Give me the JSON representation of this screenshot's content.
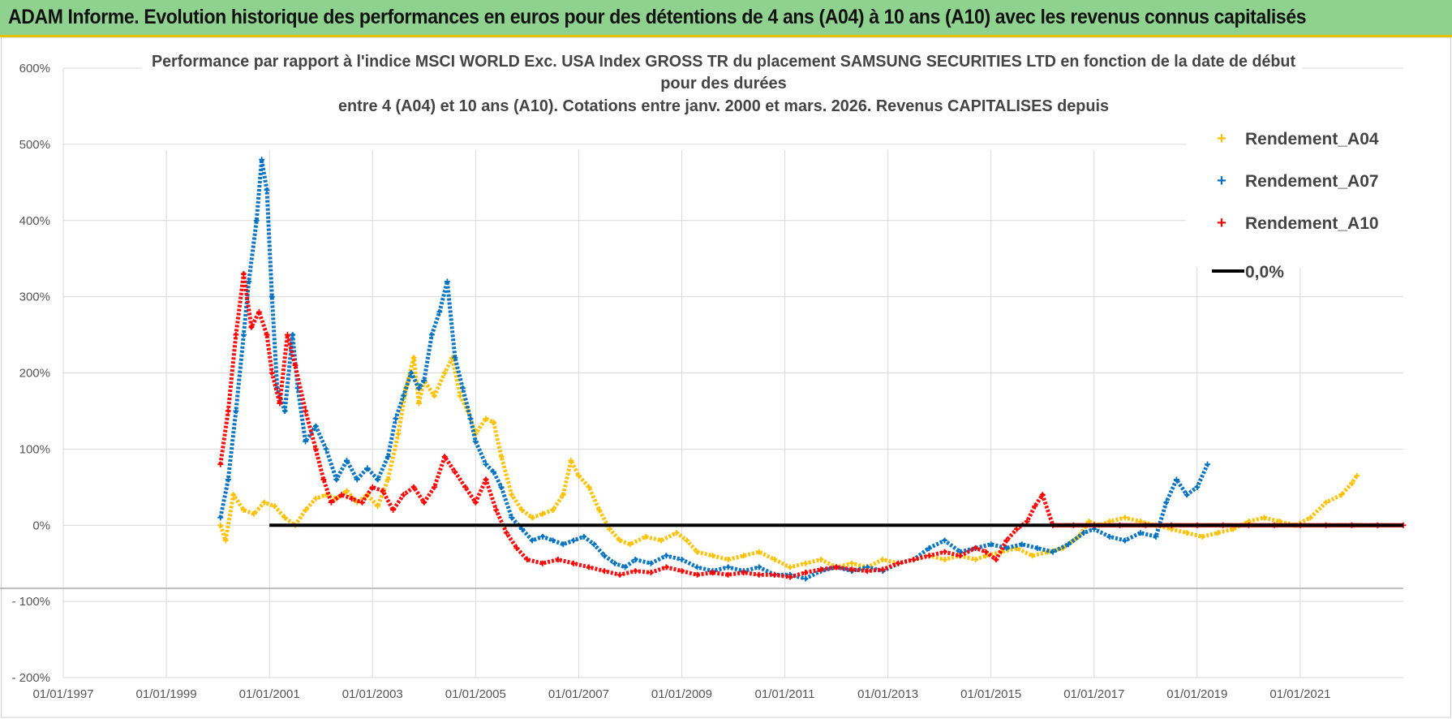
{
  "header": {
    "title": "ADAM Informe. Evolution historique des performances en euros pour des détentions de 4 ans (A04) à 10 ans (A10) avec les revenus connus capitalisés",
    "background_color": "#8fd18e",
    "border_color": "#e2c200"
  },
  "chart_data": {
    "type": "scatter",
    "title_lines": [
      "Performance par rapport à l'indice MSCI WORLD Exc. USA Index GROSS TR  du placement SAMSUNG SECURITIES LTD en fonction de la date de début",
      "pour des durées",
      "entre 4 (A04) et 10 ans (A10). Cotations entre janv. 2000 et mars. 2026. Revenus CAPITALISES depuis"
    ],
    "x_axis": {
      "type": "date",
      "range": [
        1997.0,
        2023.0
      ],
      "ticks": [
        1997,
        1999,
        2001,
        2003,
        2005,
        2007,
        2009,
        2011,
        2013,
        2015,
        2017,
        2019,
        2021
      ],
      "tick_labels": [
        "01/01/1997",
        "01/01/1999",
        "01/01/2001",
        "01/01/2003",
        "01/01/2005",
        "01/01/2007",
        "01/01/2009",
        "01/01/2011",
        "01/01/2013",
        "01/01/2015",
        "01/01/2017",
        "01/01/2019",
        "01/01/2021"
      ]
    },
    "y_axis": {
      "range": [
        -200,
        600
      ],
      "ticks": [
        -200,
        -100,
        0,
        100,
        200,
        300,
        400,
        500,
        600
      ],
      "tick_labels": [
        "- 200%",
        "- 100%",
        "0%",
        "100%",
        "200%",
        "300%",
        "400%",
        "500%",
        "600%"
      ]
    },
    "grid": true,
    "legend_position": "top-right",
    "reference_line": {
      "name": "0,0%",
      "y": 0,
      "x_range": [
        2001.0,
        2023.0
      ],
      "color": "#000000"
    },
    "series": [
      {
        "name": "Rendement_A04",
        "color": "#ffc000",
        "points": [
          [
            2000.05,
            0
          ],
          [
            2000.15,
            -20
          ],
          [
            2000.3,
            40
          ],
          [
            2000.5,
            20
          ],
          [
            2000.7,
            15
          ],
          [
            2000.9,
            30
          ],
          [
            2001.1,
            25
          ],
          [
            2001.3,
            10
          ],
          [
            2001.5,
            0
          ],
          [
            2001.7,
            20
          ],
          [
            2001.9,
            35
          ],
          [
            2002.1,
            40
          ],
          [
            2002.3,
            35
          ],
          [
            2002.5,
            45
          ],
          [
            2002.7,
            30
          ],
          [
            2002.9,
            40
          ],
          [
            2003.1,
            25
          ],
          [
            2003.3,
            60
          ],
          [
            2003.5,
            120
          ],
          [
            2003.65,
            180
          ],
          [
            2003.8,
            220
          ],
          [
            2003.9,
            160
          ],
          [
            2004.0,
            190
          ],
          [
            2004.2,
            170
          ],
          [
            2004.4,
            200
          ],
          [
            2004.55,
            220
          ],
          [
            2004.7,
            170
          ],
          [
            2004.85,
            150
          ],
          [
            2005.0,
            120
          ],
          [
            2005.2,
            140
          ],
          [
            2005.35,
            135
          ],
          [
            2005.5,
            90
          ],
          [
            2005.7,
            40
          ],
          [
            2005.9,
            20
          ],
          [
            2006.1,
            10
          ],
          [
            2006.3,
            15
          ],
          [
            2006.5,
            20
          ],
          [
            2006.7,
            40
          ],
          [
            2006.85,
            85
          ],
          [
            2007.0,
            65
          ],
          [
            2007.2,
            50
          ],
          [
            2007.4,
            20
          ],
          [
            2007.6,
            -5
          ],
          [
            2007.8,
            -20
          ],
          [
            2008.0,
            -25
          ],
          [
            2008.3,
            -15
          ],
          [
            2008.6,
            -20
          ],
          [
            2008.9,
            -10
          ],
          [
            2009.1,
            -20
          ],
          [
            2009.3,
            -35
          ],
          [
            2009.6,
            -40
          ],
          [
            2009.9,
            -45
          ],
          [
            2010.2,
            -40
          ],
          [
            2010.5,
            -35
          ],
          [
            2010.8,
            -45
          ],
          [
            2011.1,
            -55
          ],
          [
            2011.4,
            -50
          ],
          [
            2011.7,
            -45
          ],
          [
            2012.0,
            -55
          ],
          [
            2012.3,
            -50
          ],
          [
            2012.6,
            -55
          ],
          [
            2012.9,
            -45
          ],
          [
            2013.2,
            -50
          ],
          [
            2013.5,
            -45
          ],
          [
            2013.8,
            -40
          ],
          [
            2014.1,
            -45
          ],
          [
            2014.4,
            -40
          ],
          [
            2014.7,
            -45
          ],
          [
            2014.9,
            -40
          ],
          [
            2015.2,
            -35
          ],
          [
            2015.5,
            -30
          ],
          [
            2015.8,
            -40
          ],
          [
            2016.1,
            -35
          ],
          [
            2016.4,
            -30
          ],
          [
            2016.7,
            -15
          ],
          [
            2016.9,
            5
          ],
          [
            2017.1,
            0
          ],
          [
            2017.3,
            5
          ],
          [
            2017.6,
            10
          ],
          [
            2017.9,
            5
          ],
          [
            2018.2,
            0
          ],
          [
            2018.5,
            -5
          ],
          [
            2018.8,
            -10
          ],
          [
            2019.1,
            -15
          ],
          [
            2019.4,
            -10
          ],
          [
            2019.7,
            -5
          ],
          [
            2020.0,
            5
          ],
          [
            2020.3,
            10
          ],
          [
            2020.6,
            5
          ],
          [
            2020.9,
            0
          ],
          [
            2021.2,
            10
          ],
          [
            2021.5,
            30
          ],
          [
            2021.8,
            40
          ],
          [
            2022.0,
            55
          ],
          [
            2022.1,
            65
          ]
        ]
      },
      {
        "name": "Rendement_A07",
        "color": "#0070c0",
        "points": [
          [
            2000.05,
            10
          ],
          [
            2000.2,
            60
          ],
          [
            2000.35,
            150
          ],
          [
            2000.5,
            250
          ],
          [
            2000.6,
            320
          ],
          [
            2000.75,
            400
          ],
          [
            2000.85,
            480
          ],
          [
            2000.95,
            440
          ],
          [
            2001.05,
            300
          ],
          [
            2001.15,
            180
          ],
          [
            2001.3,
            150
          ],
          [
            2001.45,
            250
          ],
          [
            2001.55,
            180
          ],
          [
            2001.7,
            110
          ],
          [
            2001.9,
            130
          ],
          [
            2002.1,
            100
          ],
          [
            2002.3,
            60
          ],
          [
            2002.5,
            85
          ],
          [
            2002.7,
            60
          ],
          [
            2002.9,
            75
          ],
          [
            2003.1,
            60
          ],
          [
            2003.3,
            90
          ],
          [
            2003.45,
            140
          ],
          [
            2003.6,
            170
          ],
          [
            2003.75,
            200
          ],
          [
            2003.9,
            180
          ],
          [
            2004.0,
            190
          ],
          [
            2004.15,
            250
          ],
          [
            2004.3,
            280
          ],
          [
            2004.45,
            320
          ],
          [
            2004.6,
            220
          ],
          [
            2004.75,
            180
          ],
          [
            2004.9,
            140
          ],
          [
            2005.0,
            110
          ],
          [
            2005.2,
            80
          ],
          [
            2005.35,
            70
          ],
          [
            2005.5,
            50
          ],
          [
            2005.7,
            10
          ],
          [
            2005.9,
            -5
          ],
          [
            2006.1,
            -20
          ],
          [
            2006.3,
            -15
          ],
          [
            2006.5,
            -20
          ],
          [
            2006.7,
            -25
          ],
          [
            2006.9,
            -20
          ],
          [
            2007.1,
            -15
          ],
          [
            2007.3,
            -25
          ],
          [
            2007.5,
            -40
          ],
          [
            2007.7,
            -50
          ],
          [
            2007.9,
            -55
          ],
          [
            2008.1,
            -45
          ],
          [
            2008.4,
            -50
          ],
          [
            2008.7,
            -40
          ],
          [
            2009.0,
            -45
          ],
          [
            2009.3,
            -55
          ],
          [
            2009.6,
            -60
          ],
          [
            2009.9,
            -55
          ],
          [
            2010.2,
            -60
          ],
          [
            2010.5,
            -55
          ],
          [
            2010.8,
            -65
          ],
          [
            2011.1,
            -65
          ],
          [
            2011.4,
            -70
          ],
          [
            2011.7,
            -60
          ],
          [
            2012.0,
            -55
          ],
          [
            2012.3,
            -60
          ],
          [
            2012.6,
            -55
          ],
          [
            2012.9,
            -60
          ],
          [
            2013.2,
            -50
          ],
          [
            2013.5,
            -45
          ],
          [
            2013.8,
            -30
          ],
          [
            2014.1,
            -20
          ],
          [
            2014.4,
            -35
          ],
          [
            2014.7,
            -30
          ],
          [
            2015.0,
            -25
          ],
          [
            2015.3,
            -30
          ],
          [
            2015.6,
            -25
          ],
          [
            2015.9,
            -30
          ],
          [
            2016.2,
            -35
          ],
          [
            2016.5,
            -25
          ],
          [
            2016.8,
            -10
          ],
          [
            2017.0,
            -5
          ],
          [
            2017.3,
            -15
          ],
          [
            2017.6,
            -20
          ],
          [
            2017.9,
            -10
          ],
          [
            2018.2,
            -15
          ],
          [
            2018.4,
            30
          ],
          [
            2018.6,
            60
          ],
          [
            2018.8,
            40
          ],
          [
            2019.0,
            50
          ],
          [
            2019.2,
            80
          ]
        ]
      },
      {
        "name": "Rendement_A10",
        "color": "#ff0000",
        "points": [
          [
            2000.05,
            80
          ],
          [
            2000.2,
            150
          ],
          [
            2000.35,
            250
          ],
          [
            2000.5,
            330
          ],
          [
            2000.65,
            260
          ],
          [
            2000.8,
            280
          ],
          [
            2000.95,
            250
          ],
          [
            2001.05,
            200
          ],
          [
            2001.2,
            160
          ],
          [
            2001.35,
            250
          ],
          [
            2001.5,
            210
          ],
          [
            2001.7,
            150
          ],
          [
            2001.9,
            100
          ],
          [
            2002.05,
            60
          ],
          [
            2002.2,
            30
          ],
          [
            2002.4,
            40
          ],
          [
            2002.6,
            35
          ],
          [
            2002.8,
            30
          ],
          [
            2003.0,
            50
          ],
          [
            2003.2,
            45
          ],
          [
            2003.4,
            20
          ],
          [
            2003.6,
            40
          ],
          [
            2003.8,
            50
          ],
          [
            2004.0,
            30
          ],
          [
            2004.2,
            50
          ],
          [
            2004.4,
            90
          ],
          [
            2004.6,
            70
          ],
          [
            2004.8,
            50
          ],
          [
            2005.0,
            30
          ],
          [
            2005.2,
            60
          ],
          [
            2005.4,
            20
          ],
          [
            2005.6,
            -10
          ],
          [
            2005.8,
            -30
          ],
          [
            2006.0,
            -45
          ],
          [
            2006.3,
            -50
          ],
          [
            2006.6,
            -45
          ],
          [
            2006.9,
            -50
          ],
          [
            2007.2,
            -55
          ],
          [
            2007.5,
            -60
          ],
          [
            2007.8,
            -65
          ],
          [
            2008.1,
            -60
          ],
          [
            2008.4,
            -62
          ],
          [
            2008.7,
            -55
          ],
          [
            2009.0,
            -60
          ],
          [
            2009.3,
            -65
          ],
          [
            2009.6,
            -62
          ],
          [
            2009.9,
            -65
          ],
          [
            2010.2,
            -62
          ],
          [
            2010.5,
            -65
          ],
          [
            2010.8,
            -65
          ],
          [
            2011.1,
            -68
          ],
          [
            2011.4,
            -62
          ],
          [
            2011.7,
            -58
          ],
          [
            2012.0,
            -55
          ],
          [
            2012.3,
            -58
          ],
          [
            2012.6,
            -60
          ],
          [
            2012.9,
            -58
          ],
          [
            2013.2,
            -50
          ],
          [
            2013.5,
            -45
          ],
          [
            2013.8,
            -40
          ],
          [
            2014.1,
            -35
          ],
          [
            2014.4,
            -40
          ],
          [
            2014.7,
            -30
          ],
          [
            2014.9,
            -35
          ],
          [
            2015.1,
            -45
          ],
          [
            2015.3,
            -20
          ],
          [
            2015.5,
            -5
          ],
          [
            2015.7,
            5
          ],
          [
            2015.85,
            25
          ],
          [
            2016.0,
            40
          ],
          [
            2016.2,
            0
          ],
          [
            2016.6,
            0
          ],
          [
            2017.0,
            0
          ],
          [
            2017.5,
            0
          ],
          [
            2018.0,
            0
          ],
          [
            2018.5,
            0
          ],
          [
            2019.0,
            0
          ],
          [
            2019.5,
            0
          ],
          [
            2020.0,
            0
          ],
          [
            2020.5,
            0
          ],
          [
            2021.0,
            0
          ],
          [
            2021.5,
            0
          ],
          [
            2022.0,
            0
          ],
          [
            2022.5,
            0
          ],
          [
            2023.0,
            0
          ]
        ]
      }
    ]
  }
}
